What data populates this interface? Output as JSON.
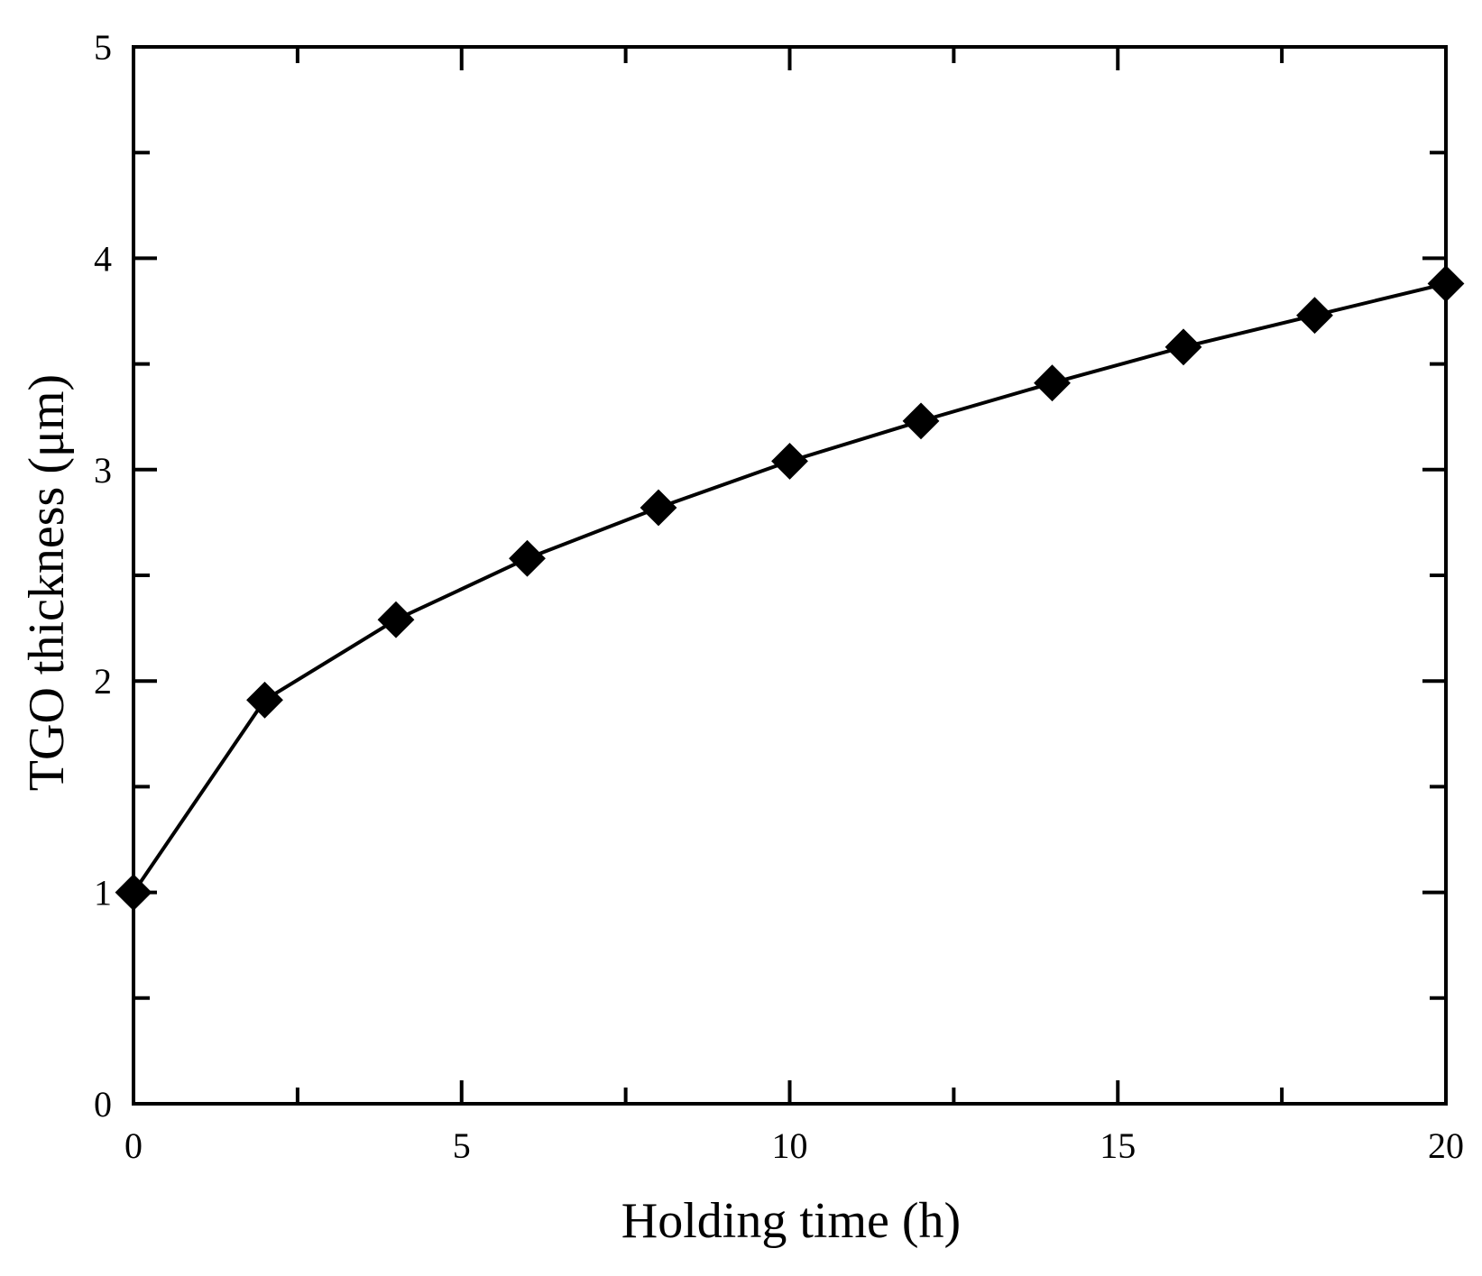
{
  "chart_data": {
    "type": "line",
    "xlabel": "Holding time (h)",
    "ylabel": "TGO thickness (μm)",
    "xlim": [
      0,
      20
    ],
    "ylim": [
      0,
      5
    ],
    "x_ticks": [
      "0",
      "5",
      "10",
      "15",
      "20"
    ],
    "y_ticks": [
      "0",
      "1",
      "2",
      "3",
      "4",
      "5"
    ],
    "x_minor_step": 2.5,
    "y_minor_step": 0.5,
    "grid": false,
    "legend": "none",
    "series": [
      {
        "marker": "diamond",
        "color": "#000000",
        "x": [
          0,
          2,
          4,
          6,
          8,
          10,
          12,
          14,
          16,
          18,
          20
        ],
        "y": [
          1.0,
          1.91,
          2.29,
          2.58,
          2.82,
          3.04,
          3.23,
          3.41,
          3.58,
          3.73,
          3.88
        ]
      }
    ]
  }
}
